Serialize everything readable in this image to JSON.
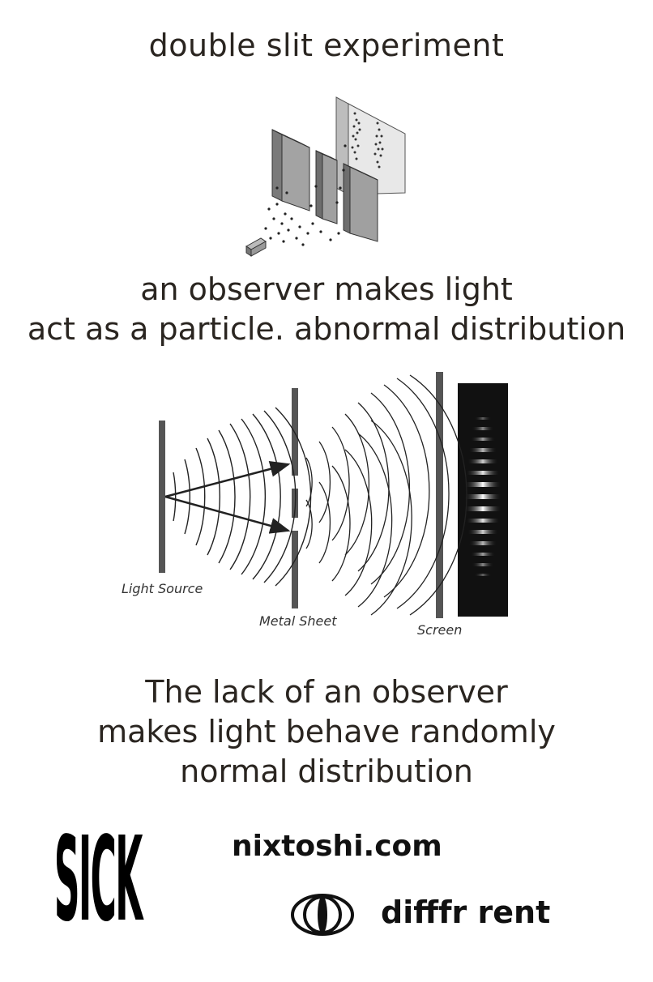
{
  "title": "double slit experiment",
  "caption_observer": {
    "line1": "an observer makes light",
    "line2": "act as a particle. abnormal distribution"
  },
  "diagram": {
    "labels": {
      "light_source": "Light Source",
      "metal_sheet": "Metal Sheet",
      "screen": "Screen"
    }
  },
  "caption_no_observer": {
    "line1": "The lack of an observer",
    "line2": "makes light behave randomly",
    "line3": "normal distribution"
  },
  "footer": {
    "sick_logo": "SICK",
    "website": "nixtoshi.com",
    "brand": "difffr rent",
    "brand_icon": "eye-icon"
  }
}
